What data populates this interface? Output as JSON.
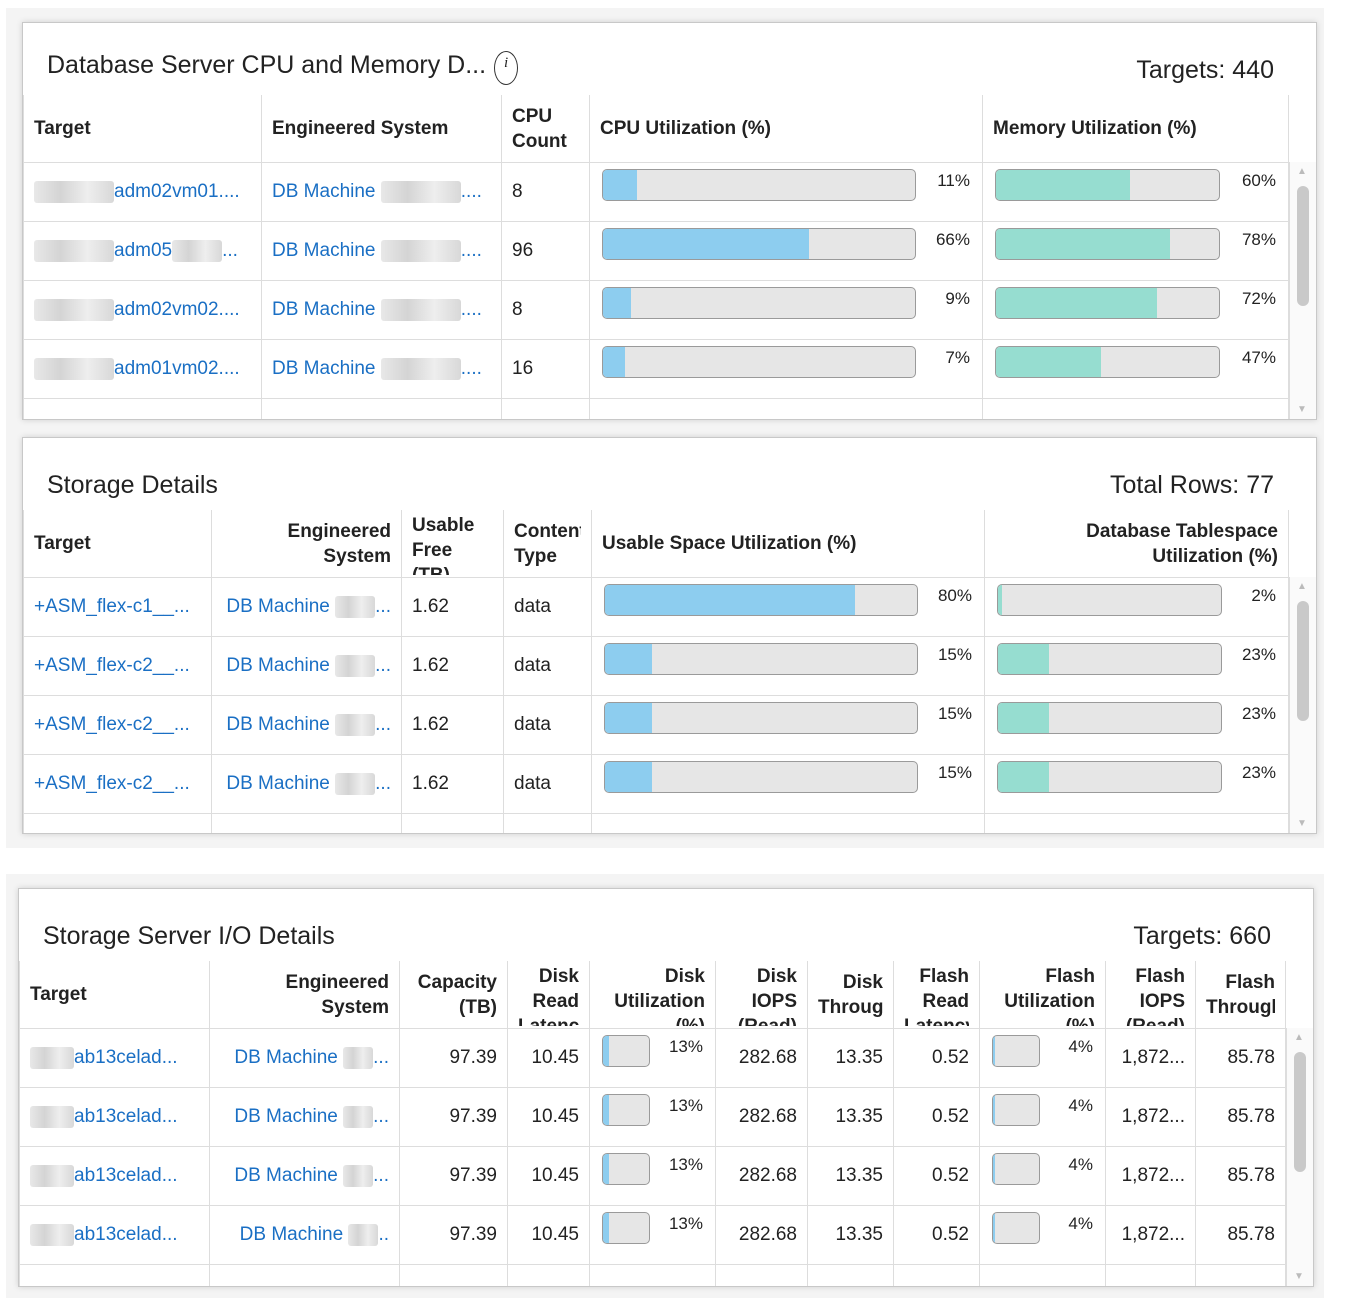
{
  "panels": [
    {
      "title": "Database Server CPU and Memory D...",
      "summary": "Targets: 440",
      "columns": [
        "Target",
        "Engineered System",
        "CPU Count",
        "CPU Utilization (%)",
        "Memory Utilization (%)"
      ],
      "rows": [
        [
          {
            "text": "adm02vm01...."
          },
          {
            "text": "DB Machine",
            "suffix": "...."
          },
          "8",
          {
            "value": 11,
            "label": "11%"
          },
          {
            "value": 60,
            "label": "60%"
          }
        ],
        [
          {
            "text": "adm05",
            "suffix": "..."
          },
          {
            "text": "DB Machine",
            "suffix": "...."
          },
          "96",
          {
            "value": 66,
            "label": "66%"
          },
          {
            "value": 78,
            "label": "78%"
          }
        ],
        [
          {
            "text": "adm02vm02...."
          },
          {
            "text": "DB Machine",
            "suffix": "...."
          },
          "8",
          {
            "value": 9,
            "label": "9%"
          },
          {
            "value": 72,
            "label": "72%"
          }
        ],
        [
          {
            "text": "adm01vm02...."
          },
          {
            "text": "DB Machine",
            "suffix": "...."
          },
          "16",
          {
            "value": 7,
            "label": "7%"
          },
          {
            "value": 47,
            "label": "47%"
          }
        ]
      ]
    },
    {
      "title": "Storage Details",
      "summary": "Total Rows: 77",
      "columns": [
        "Target",
        "Engineered System",
        "Usable Free (TB)",
        "Content Type",
        "Usable Space Utilization (%)",
        "Database Tablespace Utilization (%)"
      ],
      "rows": [
        [
          {
            "text": "+ASM_flex-c1__..."
          },
          {
            "text": "DB Machine",
            "suffix": "..."
          },
          "1.62",
          "data",
          {
            "value": 80,
            "label": "80%"
          },
          {
            "value": 2,
            "label": "2%"
          }
        ],
        [
          {
            "text": "+ASM_flex-c2__..."
          },
          {
            "text": "DB Machine",
            "suffix": "..."
          },
          "1.62",
          "data",
          {
            "value": 15,
            "label": "15%"
          },
          {
            "value": 23,
            "label": "23%"
          }
        ],
        [
          {
            "text": "+ASM_flex-c2__..."
          },
          {
            "text": "DB Machine",
            "suffix": "..."
          },
          "1.62",
          "data",
          {
            "value": 15,
            "label": "15%"
          },
          {
            "value": 23,
            "label": "23%"
          }
        ],
        [
          {
            "text": "+ASM_flex-c2__..."
          },
          {
            "text": "DB Machine",
            "suffix": "..."
          },
          "1.62",
          "data",
          {
            "value": 15,
            "label": "15%"
          },
          {
            "value": 23,
            "label": "23%"
          }
        ]
      ]
    },
    {
      "title": "Storage Server I/O Details",
      "summary": "Targets: 660",
      "columns": [
        "Target",
        "Engineered System",
        "Capacity (TB)",
        "Disk Read Latency",
        "Disk Utilization (%)",
        "Disk IOPS (Read)",
        "Disk Throughput",
        "Flash Read Latency",
        "Flash Utilization (%)",
        "Flash IOPS (Read)",
        "Flash Throughput"
      ],
      "rows": [
        [
          {
            "text": "ab13celad..."
          },
          {
            "text": "DB Machine",
            "suffix": "..."
          },
          "97.39",
          "10.45",
          {
            "value": 13,
            "label": "13%"
          },
          "282.68",
          "13.35",
          "0.52",
          {
            "value": 4,
            "label": "4%"
          },
          "1,872...",
          "85.78"
        ],
        [
          {
            "text": "ab13celad..."
          },
          {
            "text": "DB Machine",
            "suffix": "..."
          },
          "97.39",
          "10.45",
          {
            "value": 13,
            "label": "13%"
          },
          "282.68",
          "13.35",
          "0.52",
          {
            "value": 4,
            "label": "4%"
          },
          "1,872...",
          "85.78"
        ],
        [
          {
            "text": "ab13celad..."
          },
          {
            "text": "DB Machine",
            "suffix": "..."
          },
          "97.39",
          "10.45",
          {
            "value": 13,
            "label": "13%"
          },
          "282.68",
          "13.35",
          "0.52",
          {
            "value": 4,
            "label": "4%"
          },
          "1,872...",
          "85.78"
        ],
        [
          {
            "text": "ab13celad..."
          },
          {
            "text": "DB Machine",
            "suffix": ".."
          },
          "97.39",
          "10.45",
          {
            "value": 13,
            "label": "13%"
          },
          "282.68",
          "13.35",
          "0.52",
          {
            "value": 4,
            "label": "4%"
          },
          "1,872...",
          "85.78"
        ]
      ]
    }
  ]
}
